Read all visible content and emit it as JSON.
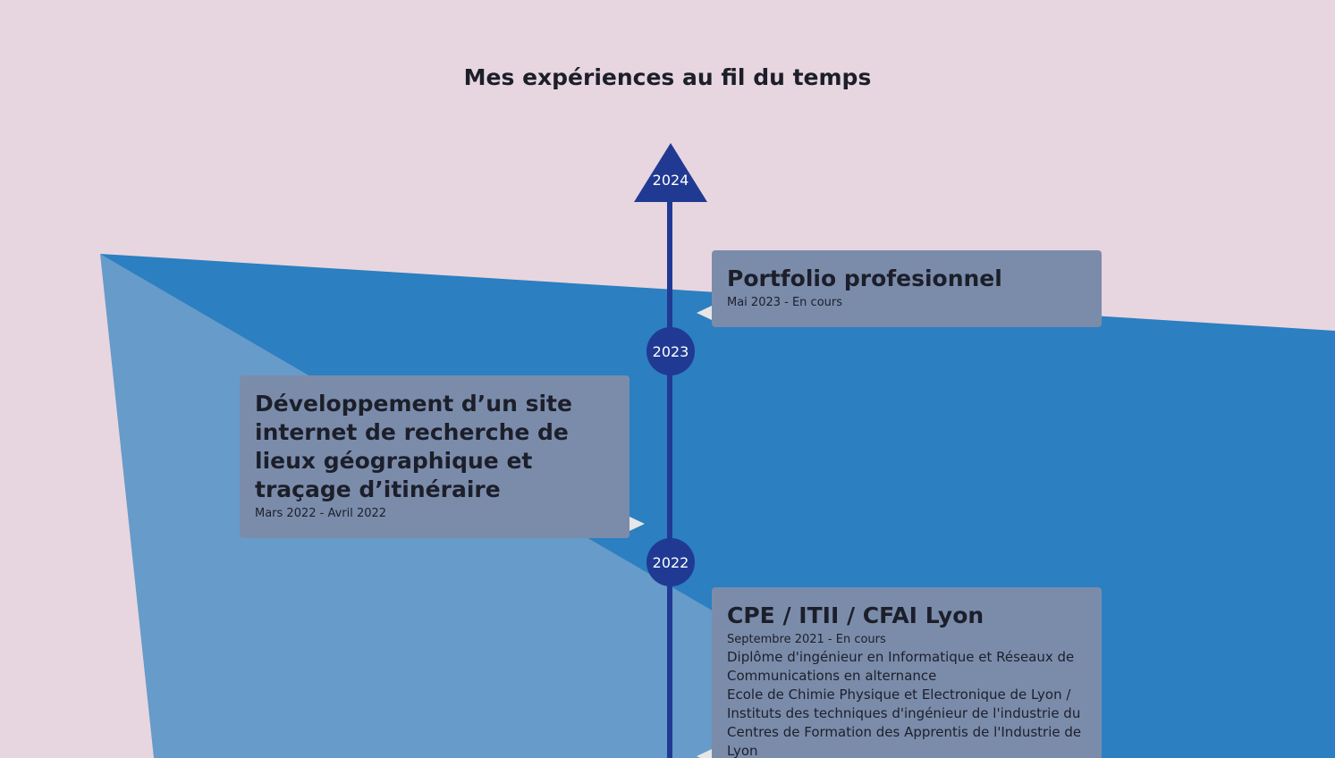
{
  "page": {
    "title": "Mes expériences au fil du temps"
  },
  "timeline": {
    "top_year": "2024",
    "markers": [
      "2023",
      "2022"
    ]
  },
  "experiences": [
    {
      "title": "Portfolio profesionnel",
      "date": "Mai 2023 - En cours",
      "description": []
    },
    {
      "title": "Développement d’un site internet de recherche de lieux géographique et traçage d’itinéraire",
      "date": "Mars 2022 - Avril 2022",
      "description": []
    },
    {
      "title": "CPE / ITII / CFAI Lyon",
      "date": "Septembre 2021 - En cours",
      "description": [
        "Diplôme d'ingénieur en Informatique et Réseaux de Communications en alternance",
        "Ecole de Chimie Physique et Electronique de Lyon / Instituts des techniques d'ingénieur de l'industrie du Centres de Formation des Apprentis de l'Industrie de Lyon"
      ]
    }
  ],
  "colors": {
    "background": "#e7d6df",
    "shape_dark": "#2c7fc0",
    "shape_light": "#679bc9",
    "timeline": "#203a93",
    "card": "#7b8cab"
  }
}
